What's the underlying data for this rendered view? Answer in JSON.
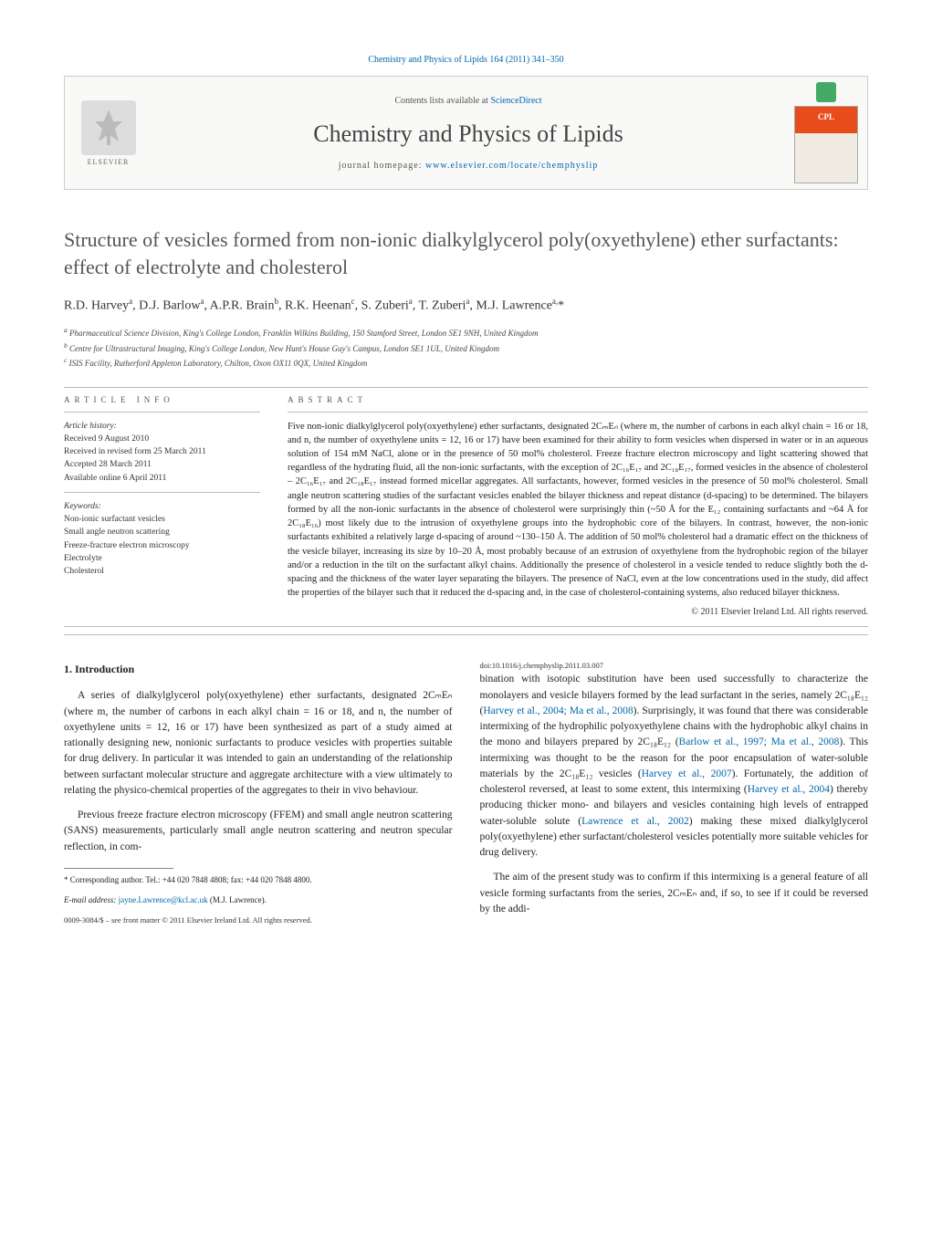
{
  "header": {
    "citation_line": "Chemistry and Physics of Lipids 164 (2011) 341–350",
    "contents_prefix": "Contents lists available at ",
    "contents_link": "ScienceDirect",
    "journal_name": "Chemistry and Physics of Lipids",
    "homepage_prefix": "journal homepage: ",
    "homepage_url": "www.elsevier.com/locate/chemphyslip",
    "publisher_name": "ELSEVIER",
    "cover_badge": "CPL"
  },
  "article": {
    "title": "Structure of vesicles formed from non-ionic dialkylglycerol poly(oxyethylene) ether surfactants: effect of electrolyte and cholesterol",
    "authors_html": "R.D. Harvey<sup>a</sup>, D.J. Barlow<sup>a</sup>, A.P.R. Brain<sup>b</sup>, R.K. Heenan<sup>c</sup>, S. Zuberi<sup>a</sup>, T. Zuberi<sup>a</sup>, M.J. Lawrence<sup>a,</sup>*",
    "affiliations": [
      "a Pharmaceutical Science Division, King's College London, Franklin Wilkins Building, 150 Stamford Street, London SE1 9NH, United Kingdom",
      "b Centre for Ultrastructural Imaging, King's College London, New Hunt's House Guy's Campus, London SE1 1UL, United Kingdom",
      "c ISIS Facility, Rutherford Appleton Laboratory, Chilton, Oxon OX11 0QX, United Kingdom"
    ]
  },
  "info": {
    "label": "ARTICLE INFO",
    "history_label": "Article history:",
    "history": [
      "Received 9 August 2010",
      "Received in revised form 25 March 2011",
      "Accepted 28 March 2011",
      "Available online 6 April 2011"
    ],
    "keywords_label": "Keywords:",
    "keywords": [
      "Non-ionic surfactant vesicles",
      "Small angle neutron scattering",
      "Freeze-fracture electron microscopy",
      "Electrolyte",
      "Cholesterol"
    ]
  },
  "abstract": {
    "label": "ABSTRACT",
    "text": "Five non-ionic dialkylglycerol poly(oxyethylene) ether surfactants, designated 2CₘEₙ (where m, the number of carbons in each alkyl chain = 16 or 18, and n, the number of oxyethylene units = 12, 16 or 17) have been examined for their ability to form vesicles when dispersed in water or in an aqueous solution of 154 mM NaCl, alone or in the presence of 50 mol% cholesterol. Freeze fracture electron microscopy and light scattering showed that regardless of the hydrating fluid, all the non-ionic surfactants, with the exception of 2C₁₆E₁₇ and 2C₁₈E₁₇, formed vesicles in the absence of cholesterol – 2C₁₆E₁₇ and 2C₁₈E₁₇ instead formed micellar aggregates. All surfactants, however, formed vesicles in the presence of 50 mol% cholesterol. Small angle neutron scattering studies of the surfactant vesicles enabled the bilayer thickness and repeat distance (d-spacing) to be determined. The bilayers formed by all the non-ionic surfactants in the absence of cholesterol were surprisingly thin (~50 Å for the E₁₂ containing surfactants and ~64 Å for 2C₁₈E₁₆) most likely due to the intrusion of oxyethylene groups into the hydrophobic core of the bilayers. In contrast, however, the non-ionic surfactants exhibited a relatively large d-spacing of around ~130–150 Å. The addition of 50 mol% cholesterol had a dramatic effect on the thickness of the vesicle bilayer, increasing its size by 10–20 Å, most probably because of an extrusion of oxyethylene from the hydrophobic region of the bilayer and/or a reduction in the tilt on the surfactant alkyl chains. Additionally the presence of cholesterol in a vesicle tended to reduce slightly both the d-spacing and the thickness of the water layer separating the bilayers. The presence of NaCl, even at the low concentrations used in the study, did affect the properties of the bilayer such that it reduced the d-spacing and, in the case of cholesterol-containing systems, also reduced bilayer thickness.",
    "copyright": "© 2011 Elsevier Ireland Ltd. All rights reserved."
  },
  "body": {
    "section1_heading": "1. Introduction",
    "p1": "A series of dialkylglycerol poly(oxyethylene) ether surfactants, designated 2CₘEₙ (where m, the number of carbons in each alkyl chain = 16 or 18, and n, the number of oxyethylene units = 12, 16 or 17) have been synthesized as part of a study aimed at rationally designing new, nonionic surfactants to produce vesicles with properties suitable for drug delivery. In particular it was intended to gain an understanding of the relationship between surfactant molecular structure and aggregate architecture with a view ultimately to relating the physico-chemical properties of the aggregates to their in vivo behaviour.",
    "p2": "Previous freeze fracture electron microscopy (FFEM) and small angle neutron scattering (SANS) measurements, particularly small angle neutron scattering and neutron specular reflection, in com-",
    "p3_pre": "bination with isotopic substitution have been used successfully to characterize the monolayers and vesicle bilayers formed by the lead surfactant in the series, namely 2C₁₈E₁₂ (",
    "p3_link1": "Harvey et al., 2004; Ma et al., 2008",
    "p3_mid1": "). Surprisingly, it was found that there was considerable intermixing of the hydrophilic polyoxyethylene chains with the hydrophobic alkyl chains in the mono and bilayers prepared by 2C₁₈E₁₂ (",
    "p3_link2": "Barlow et al., 1997; Ma et al., 2008",
    "p3_mid2": "). This intermixing was thought to be the reason for the poor encapsulation of water-soluble materials by the 2C₁₈E₁₂ vesicles (",
    "p3_link3": "Harvey et al., 2007",
    "p3_mid3": "). Fortunately, the addition of cholesterol reversed, at least to some extent, this intermixing (",
    "p3_link4": "Harvey et al., 2004",
    "p3_mid4": ") thereby producing thicker mono- and bilayers and vesicles containing high levels of entrapped water-soluble solute (",
    "p3_link5": "Lawrence et al., 2002",
    "p3_post": ") making these mixed dialkylglycerol poly(oxyethylene) ether surfactant/cholesterol vesicles potentially more suitable vehicles for drug delivery.",
    "p4": "The aim of the present study was to confirm if this intermixing is a general feature of all vesicle forming surfactants from the series, 2CₘEₙ and, if so, to see if it could be reversed by the addi-"
  },
  "footnotes": {
    "corr": "* Corresponding author. Tel.: +44 020 7848 4808; fax: +44 020 7848 4800.",
    "email_label": "E-mail address: ",
    "email": "jayne.Lawrence@kcl.ac.uk",
    "email_suffix": " (M.J. Lawrence).",
    "issn": "0009-3084/$ – see front matter © 2011 Elsevier Ireland Ltd. All rights reserved.",
    "doi": "doi:10.1016/j.chemphyslip.2011.03.007"
  },
  "styling": {
    "link_color": "#0066aa",
    "rule_color": "#bbbbbb",
    "body_font": "Times New Roman",
    "title_color": "#555555",
    "cover_top_color": "#e84c1a",
    "cover_bottom_color": "#f0ece4"
  }
}
